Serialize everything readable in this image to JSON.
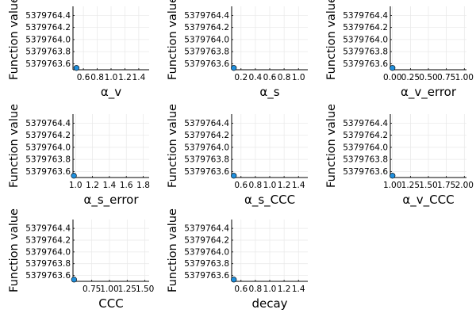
{
  "chart_data": [
    {
      "type": "scatter",
      "xlabel": "α_v",
      "ylabel": "Function value",
      "xlim": [
        0.45,
        1.55
      ],
      "ylim": [
        5379763.5,
        5379764.55
      ],
      "xticks": [
        0.6,
        0.8,
        1.0,
        1.2,
        1.4
      ],
      "xtick_labels": [
        "0.6",
        "0.8",
        "1.0",
        "1.2",
        "1.4"
      ],
      "yticks": [
        5379763.6,
        5379763.8,
        5379764.0,
        5379764.2,
        5379764.4
      ],
      "ytick_labels": [
        "5379763.6",
        "5379763.8",
        "5379764.0",
        "5379764.2",
        "5379764.4"
      ],
      "grid": true,
      "points": [
        {
          "x": 0.5,
          "y": 5379763.53
        }
      ]
    },
    {
      "type": "scatter",
      "xlabel": "α_s",
      "ylabel": "Function value",
      "xlim": [
        0.07,
        1.13
      ],
      "ylim": [
        5379763.5,
        5379764.55
      ],
      "xticks": [
        0.2,
        0.4,
        0.6,
        0.8,
        1.0
      ],
      "xtick_labels": [
        "0.2",
        "0.4",
        "0.6",
        "0.8",
        "1.0"
      ],
      "yticks": [
        5379763.6,
        5379763.8,
        5379764.0,
        5379764.2,
        5379764.4
      ],
      "ytick_labels": [
        "5379763.6",
        "5379763.8",
        "5379764.0",
        "5379764.2",
        "5379764.4"
      ],
      "grid": true,
      "points": [
        {
          "x": 0.1,
          "y": 5379763.53
        }
      ]
    },
    {
      "type": "scatter",
      "xlabel": "α_v_error",
      "ylabel": "Function value",
      "xlim": [
        -0.03,
        1.03
      ],
      "ylim": [
        5379763.5,
        5379764.55
      ],
      "xticks": [
        0.0,
        0.25,
        0.5,
        0.75,
        1.0
      ],
      "xtick_labels": [
        "0.00",
        "0.25",
        "0.50",
        "0.75",
        "1.00"
      ],
      "yticks": [
        5379763.6,
        5379763.8,
        5379764.0,
        5379764.2,
        5379764.4
      ],
      "ytick_labels": [
        "5379763.6",
        "5379763.8",
        "5379764.0",
        "5379764.2",
        "5379764.4"
      ],
      "grid": true,
      "points": [
        {
          "x": 0.0,
          "y": 5379763.53
        }
      ]
    },
    {
      "type": "scatter",
      "xlabel": "α_s_error",
      "ylabel": "Function value",
      "xlim": [
        0.97,
        1.87
      ],
      "ylim": [
        5379763.5,
        5379764.55
      ],
      "xticks": [
        1.0,
        1.2,
        1.4,
        1.6,
        1.8
      ],
      "xtick_labels": [
        "1.0",
        "1.2",
        "1.4",
        "1.6",
        "1.8"
      ],
      "yticks": [
        5379763.6,
        5379763.8,
        5379764.0,
        5379764.2,
        5379764.4
      ],
      "ytick_labels": [
        "5379763.6",
        "5379763.8",
        "5379764.0",
        "5379764.2",
        "5379764.4"
      ],
      "grid": true,
      "points": [
        {
          "x": 0.98,
          "y": 5379763.53
        }
      ]
    },
    {
      "type": "scatter",
      "xlabel": "α_s_CCC",
      "ylabel": "Function value",
      "xlim": [
        0.47,
        1.53
      ],
      "ylim": [
        5379763.5,
        5379764.55
      ],
      "xticks": [
        0.6,
        0.8,
        1.0,
        1.2,
        1.4
      ],
      "xtick_labels": [
        "0.6",
        "0.8",
        "1.0",
        "1.2",
        "1.4"
      ],
      "yticks": [
        5379763.6,
        5379763.8,
        5379764.0,
        5379764.2,
        5379764.4
      ],
      "ytick_labels": [
        "5379763.6",
        "5379763.8",
        "5379764.0",
        "5379764.2",
        "5379764.4"
      ],
      "grid": true,
      "points": [
        {
          "x": 0.5,
          "y": 5379763.53
        }
      ]
    },
    {
      "type": "scatter",
      "xlabel": "α_v_CCC",
      "ylabel": "Function value",
      "xlim": [
        0.97,
        2.03
      ],
      "ylim": [
        5379763.5,
        5379764.55
      ],
      "xticks": [
        1.0,
        1.25,
        1.5,
        1.75,
        2.0
      ],
      "xtick_labels": [
        "1.00",
        "1.25",
        "1.50",
        "1.75",
        "2.00"
      ],
      "yticks": [
        5379763.6,
        5379763.8,
        5379764.0,
        5379764.2,
        5379764.4
      ],
      "ytick_labels": [
        "5379763.6",
        "5379763.8",
        "5379764.0",
        "5379764.2",
        "5379764.4"
      ],
      "grid": true,
      "points": [
        {
          "x": 1.0,
          "y": 5379763.53
        }
      ]
    },
    {
      "type": "scatter",
      "xlabel": "CCC",
      "ylabel": "Function value",
      "xlim": [
        0.485,
        1.56
      ],
      "ylim": [
        5379763.5,
        5379764.55
      ],
      "xticks": [
        0.75,
        1.0,
        1.25,
        1.5
      ],
      "xtick_labels": [
        "0.75",
        "1.00",
        "1.25",
        "1.50"
      ],
      "yticks": [
        5379763.6,
        5379763.8,
        5379764.0,
        5379764.2,
        5379764.4
      ],
      "ytick_labels": [
        "5379763.6",
        "5379763.8",
        "5379764.0",
        "5379764.2",
        "5379764.4"
      ],
      "grid": true,
      "points": [
        {
          "x": 0.5,
          "y": 5379763.53
        }
      ]
    },
    {
      "type": "scatter",
      "xlabel": "decay",
      "ylabel": "Function value",
      "xlim": [
        0.47,
        1.53
      ],
      "ylim": [
        5379763.5,
        5379764.55
      ],
      "xticks": [
        0.6,
        0.8,
        1.0,
        1.2,
        1.4
      ],
      "xtick_labels": [
        "0.6",
        "0.8",
        "1.0",
        "1.2",
        "1.4"
      ],
      "yticks": [
        5379763.6,
        5379763.8,
        5379764.0,
        5379764.2,
        5379764.4
      ],
      "ytick_labels": [
        "5379763.6",
        "5379763.8",
        "5379764.0",
        "5379764.2",
        "5379764.4"
      ],
      "grid": true,
      "points": [
        {
          "x": 0.5,
          "y": 5379763.53
        }
      ]
    }
  ],
  "colors": {
    "marker": "#1f8fdd",
    "marker_stroke": "#000000",
    "grid": "#e8e8e8",
    "axis": "#000000"
  }
}
